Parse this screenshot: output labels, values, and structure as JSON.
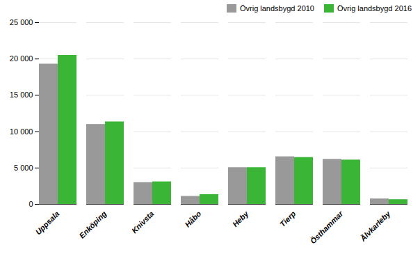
{
  "chart_data": {
    "type": "bar",
    "categories": [
      "Uppsala",
      "Enköping",
      "Knivsta",
      "Håbo",
      "Heby",
      "Tierp",
      "Östhammar",
      "Älvkarleby"
    ],
    "series": [
      {
        "name": "Övrig landsbygd 2010",
        "color": "#999999",
        "values": [
          19300,
          11000,
          3000,
          1100,
          5050,
          6550,
          6200,
          750
        ]
      },
      {
        "name": "Övrig landsbygd 2016",
        "color": "#3ab536",
        "values": [
          20500,
          11350,
          3100,
          1350,
          5050,
          6450,
          6100,
          650
        ]
      }
    ],
    "ylim": [
      0,
      25000
    ],
    "yticks": [
      0,
      {
        "value": 5000,
        "label": "5 000"
      },
      {
        "value": 10000,
        "label": "10 000"
      },
      {
        "value": 15000,
        "label": "15 000"
      },
      {
        "value": 20000,
        "label": "20 000"
      },
      {
        "value": 25000,
        "label": "25 000"
      }
    ],
    "grid": true,
    "legend": "upper right"
  }
}
